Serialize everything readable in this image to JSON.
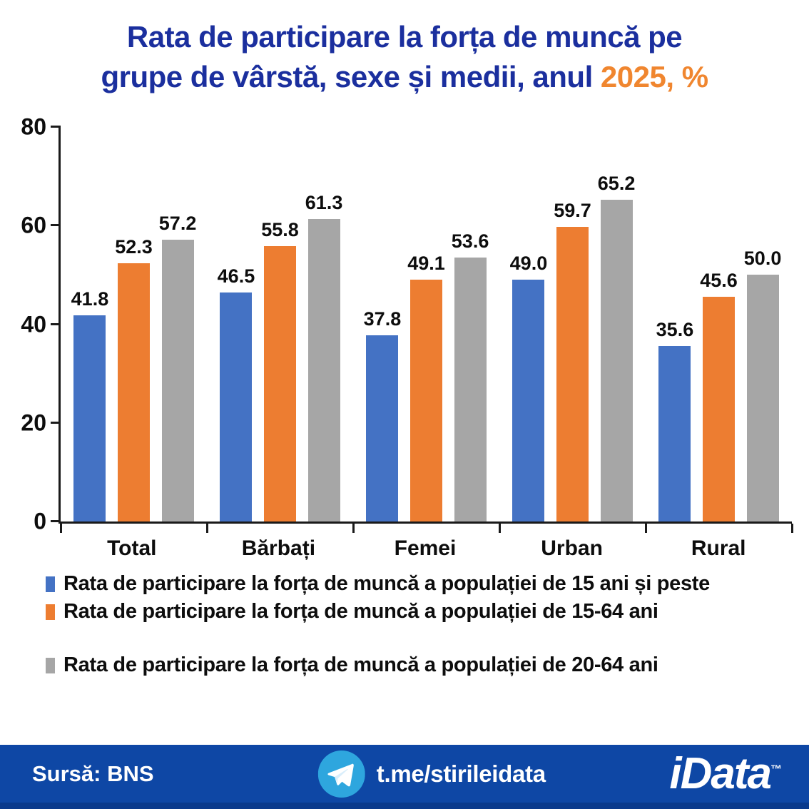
{
  "title": {
    "line1": "Rata de participare la forța de muncă pe",
    "line2_prefix": "grupe de vârstă, sexe și medii, anul ",
    "highlight": "2025, %"
  },
  "chart_data": {
    "type": "bar",
    "categories": [
      "Total",
      "Bărbați",
      "Femei",
      "Urban",
      "Rural"
    ],
    "series": [
      {
        "name": "Rata de participare la forța de muncă a populației de 15 ani și peste",
        "color": "#4472C4",
        "values": [
          41.8,
          46.5,
          37.8,
          49.0,
          35.6
        ]
      },
      {
        "name": "Rata de participare la forța de muncă a populației de 15-64 ani",
        "color": "#ED7D31",
        "values": [
          52.3,
          55.8,
          49.1,
          59.7,
          45.6
        ]
      },
      {
        "name": "Rata de participare la forța de muncă a populației de 20-64 ani",
        "color": "#A6A6A6",
        "values": [
          57.2,
          61.3,
          53.6,
          65.2,
          50.0
        ]
      }
    ],
    "ylim": [
      0,
      80
    ],
    "yticks": [
      0,
      20,
      40,
      60,
      80
    ],
    "grid": false,
    "legend_position": "bottom",
    "value_labels": true
  },
  "colors": {
    "title_blue": "#1B2F9E",
    "title_orange": "#F0862F",
    "axis": "#1a1a1a",
    "footer_bg": "#0E47A5",
    "telegram_blue": "#2EA6DE"
  },
  "footer": {
    "source": "Sursă: BNS",
    "channel": "t.me/stirileidata",
    "brand": "iData",
    "trademark": "™"
  }
}
